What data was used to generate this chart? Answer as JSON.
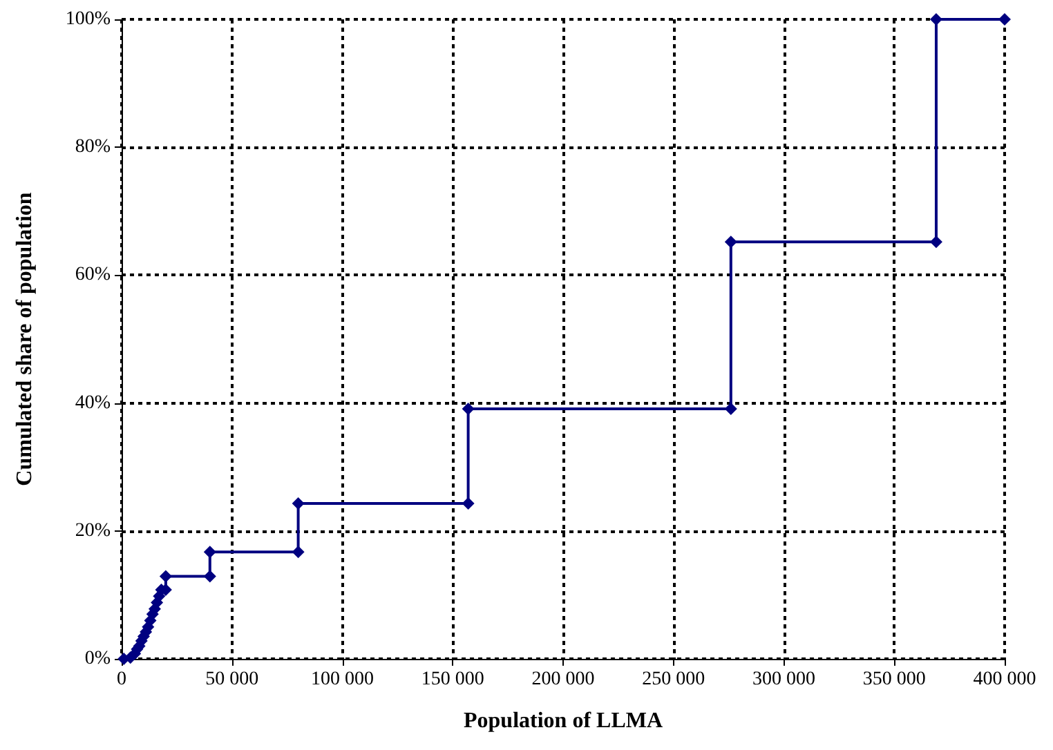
{
  "chart_data": {
    "type": "line",
    "xlabel": "Population of LLMA",
    "ylabel": "Cumulated share of population",
    "series": [
      {
        "color": "#000080",
        "x": [
          1000,
          4000,
          6000,
          7000,
          8000,
          9000,
          10000,
          11000,
          12000,
          13000,
          14000,
          15000,
          16000,
          17000,
          18000,
          20000,
          20000,
          40000,
          40000,
          80000,
          80000,
          157000,
          157000,
          276000,
          276000,
          369000,
          369000,
          400000
        ],
        "values": [
          0,
          0.2,
          0.8,
          1.5,
          2,
          2.8,
          3.5,
          4.2,
          5,
          6,
          7,
          7.8,
          8.8,
          9.8,
          10.8,
          10.8,
          12.9,
          12.9,
          16.7,
          16.7,
          24.3,
          24.3,
          39.1,
          39.1,
          65.2,
          65.2,
          100,
          100
        ]
      }
    ],
    "xlim": [
      0,
      400000
    ],
    "xticks": [
      {
        "value": 0,
        "label": "0"
      },
      {
        "value": 50000,
        "label": "50 000"
      },
      {
        "value": 100000,
        "label": "100 000"
      },
      {
        "value": 150000,
        "label": "150 000"
      },
      {
        "value": 200000,
        "label": "200 000"
      },
      {
        "value": 250000,
        "label": "250 000"
      },
      {
        "value": 300000,
        "label": "300 000"
      },
      {
        "value": 350000,
        "label": "350 000"
      },
      {
        "value": 400000,
        "label": "400 000"
      }
    ],
    "ylim": [
      0,
      100
    ],
    "yticks": [
      {
        "value": 0,
        "label": "0%"
      },
      {
        "value": 20,
        "label": "20%"
      },
      {
        "value": 40,
        "label": "40%"
      },
      {
        "value": 60,
        "label": "60%"
      },
      {
        "value": 80,
        "label": "80%"
      },
      {
        "value": 100,
        "label": "100%"
      }
    ],
    "grid": true,
    "marker": "diamond",
    "line_style": "solid"
  }
}
